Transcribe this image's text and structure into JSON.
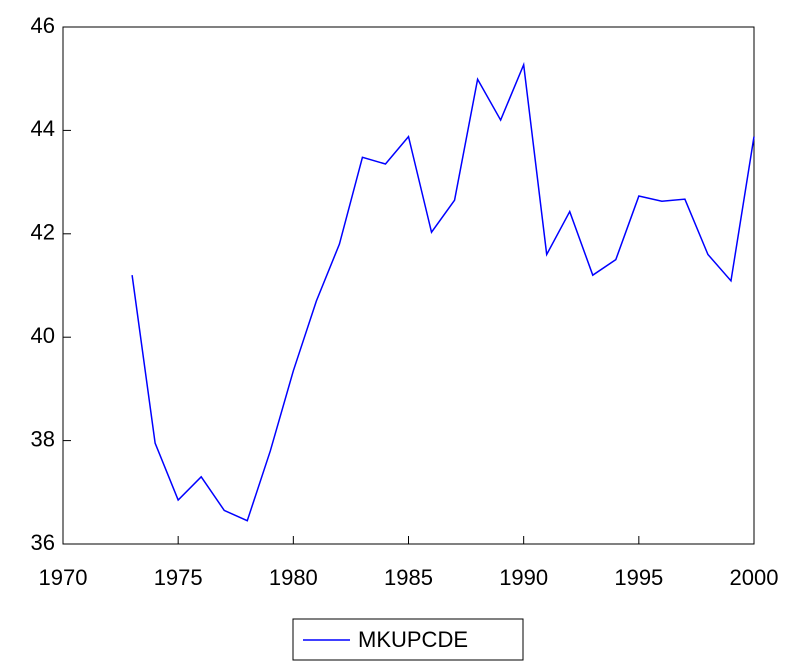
{
  "chart_data": {
    "type": "line",
    "x": [
      1973,
      1974,
      1975,
      1976,
      1977,
      1978,
      1979,
      1980,
      1981,
      1982,
      1983,
      1984,
      1985,
      1986,
      1987,
      1988,
      1989,
      1990,
      1991,
      1992,
      1993,
      1994,
      1995,
      1996,
      1997,
      1998,
      1999,
      2000
    ],
    "series": [
      {
        "name": "MKUPCDE",
        "color": "#0000ff",
        "values": [
          41.2,
          37.95,
          36.85,
          37.3,
          36.65,
          36.45,
          37.8,
          39.35,
          40.7,
          41.8,
          43.48,
          43.35,
          43.88,
          42.03,
          42.65,
          44.99,
          44.2,
          45.27,
          41.6,
          42.43,
          41.2,
          41.5,
          42.73,
          42.63,
          42.67,
          41.6,
          41.09,
          43.88
        ]
      }
    ],
    "xlim": [
      1970,
      2000
    ],
    "xticks": [
      1970,
      1975,
      1980,
      1985,
      1990,
      1995,
      2000
    ],
    "ylim": [
      36,
      46
    ],
    "yticks": [
      36,
      38,
      40,
      42,
      44,
      46
    ],
    "grid": false,
    "legend": "bottom"
  }
}
